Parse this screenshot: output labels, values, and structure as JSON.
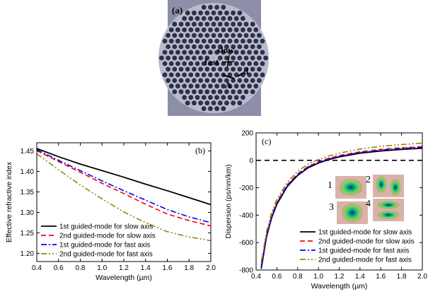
{
  "photo": {
    "panel_label": "(a)",
    "labels": {
      "slow": "slow",
      "fast": "fast",
      "d": "d",
      "lambda": "Λ"
    },
    "colors": {
      "background": "#8d8ea8",
      "fiber": "#b8bad0",
      "hole": "#2e3045",
      "core": "#a7a9c1"
    }
  },
  "chart_data": [
    {
      "type": "line",
      "panel_label": "(b)",
      "title": "",
      "xlabel": "Wavelength (µm)",
      "ylabel": "Effective refractive index",
      "xlim": [
        0.4,
        2.0
      ],
      "ylim": [
        1.18,
        1.47
      ],
      "xticks": [
        "0.4",
        "0.6",
        "0.8",
        "1.0",
        "1.2",
        "1.4",
        "1.6",
        "1.8",
        "2.0"
      ],
      "yticks": [
        "1.20",
        "1.25",
        "1.30",
        "1.35",
        "1.40",
        "1.45"
      ],
      "grid": false,
      "legend_position": "bottom-left",
      "series": [
        {
          "name": "1st guided-mode for slow axis",
          "color": "#000000",
          "dash": "solid",
          "x": [
            0.4,
            0.6,
            0.8,
            1.0,
            1.2,
            1.4,
            1.6,
            1.8,
            2.0
          ],
          "y": [
            1.456,
            1.436,
            1.418,
            1.402,
            1.386,
            1.369,
            1.353,
            1.336,
            1.319
          ]
        },
        {
          "name": "2nd guided-mode for slow axis",
          "color": "#ff0000",
          "dash": "dash",
          "x": [
            0.4,
            0.6,
            0.8,
            1.0,
            1.2,
            1.4,
            1.6,
            1.8,
            2.0
          ],
          "y": [
            1.451,
            1.424,
            1.398,
            1.371,
            1.346,
            1.32,
            1.296,
            1.28,
            1.267
          ]
        },
        {
          "name": "1st guided-mode for fast axis",
          "color": "#0000ff",
          "dash": "dashdot",
          "x": [
            0.4,
            0.6,
            0.8,
            1.0,
            1.2,
            1.4,
            1.6,
            1.8,
            2.0
          ],
          "y": [
            1.453,
            1.427,
            1.402,
            1.377,
            1.353,
            1.33,
            1.307,
            1.289,
            1.275
          ]
        },
        {
          "name": "2nd guided-mode for fast axis",
          "color": "#8a8a00",
          "dash": "dashdotdot",
          "x": [
            0.4,
            0.6,
            0.8,
            1.0,
            1.2,
            1.4,
            1.6,
            1.8,
            2.0
          ],
          "y": [
            1.443,
            1.404,
            1.367,
            1.333,
            1.301,
            1.275,
            1.253,
            1.24,
            1.231
          ]
        }
      ]
    },
    {
      "type": "line",
      "panel_label": "(c)",
      "title": "",
      "xlabel": "Wavelength (µm)",
      "ylabel": "Dispersion (ps/nm/km)",
      "xlim": [
        0.4,
        2.0
      ],
      "ylim": [
        -800,
        200
      ],
      "xticks": [
        "0.4",
        "0.6",
        "0.8",
        "1.0",
        "1.2",
        "1.4",
        "1.6",
        "1.8",
        "2.0"
      ],
      "yticks": [
        "-800",
        "-600",
        "-400",
        "-200",
        "0",
        "200"
      ],
      "grid": false,
      "legend_position": "bottom-right",
      "reference_line": {
        "y": 0,
        "style": "dashed",
        "color": "#000000"
      },
      "inset_labels": [
        "1",
        "2",
        "3",
        "4"
      ],
      "series": [
        {
          "name": "1st guided-mode for slow axis",
          "color": "#000000",
          "dash": "solid",
          "x": [
            0.45,
            0.5,
            0.55,
            0.6,
            0.7,
            0.8,
            0.9,
            1.0,
            1.1,
            1.2,
            1.4,
            1.6,
            1.8,
            2.0
          ],
          "y": [
            -790,
            -560,
            -420,
            -320,
            -190,
            -110,
            -55,
            -20,
            5,
            25,
            52,
            68,
            80,
            88
          ]
        },
        {
          "name": "2nd guided-mode for slow axis",
          "color": "#ff0000",
          "dash": "dash",
          "x": [
            0.45,
            0.5,
            0.55,
            0.6,
            0.7,
            0.8,
            0.9,
            1.0,
            1.1,
            1.2,
            1.4,
            1.6,
            1.8,
            2.0
          ],
          "y": [
            -770,
            -545,
            -405,
            -305,
            -178,
            -98,
            -45,
            -10,
            15,
            35,
            62,
            80,
            92,
            100
          ]
        },
        {
          "name": "1st guided-mode for fast axis",
          "color": "#0000ff",
          "dash": "dashdot",
          "x": [
            0.45,
            0.5,
            0.55,
            0.6,
            0.7,
            0.8,
            0.9,
            1.0,
            1.1,
            1.2,
            1.4,
            1.6,
            1.8,
            2.0
          ],
          "y": [
            -780,
            -552,
            -412,
            -312,
            -184,
            -104,
            -50,
            -15,
            10,
            30,
            57,
            74,
            86,
            95
          ]
        },
        {
          "name": "2nd guided-mode for fast axis",
          "color": "#8a8a00",
          "dash": "dashdotdot",
          "x": [
            0.45,
            0.5,
            0.55,
            0.6,
            0.7,
            0.8,
            0.9,
            1.0,
            1.1,
            1.2,
            1.4,
            1.6,
            1.8,
            2.0
          ],
          "y": [
            -740,
            -520,
            -380,
            -285,
            -160,
            -80,
            -28,
            5,
            32,
            52,
            82,
            102,
            115,
            125
          ]
        }
      ]
    }
  ]
}
